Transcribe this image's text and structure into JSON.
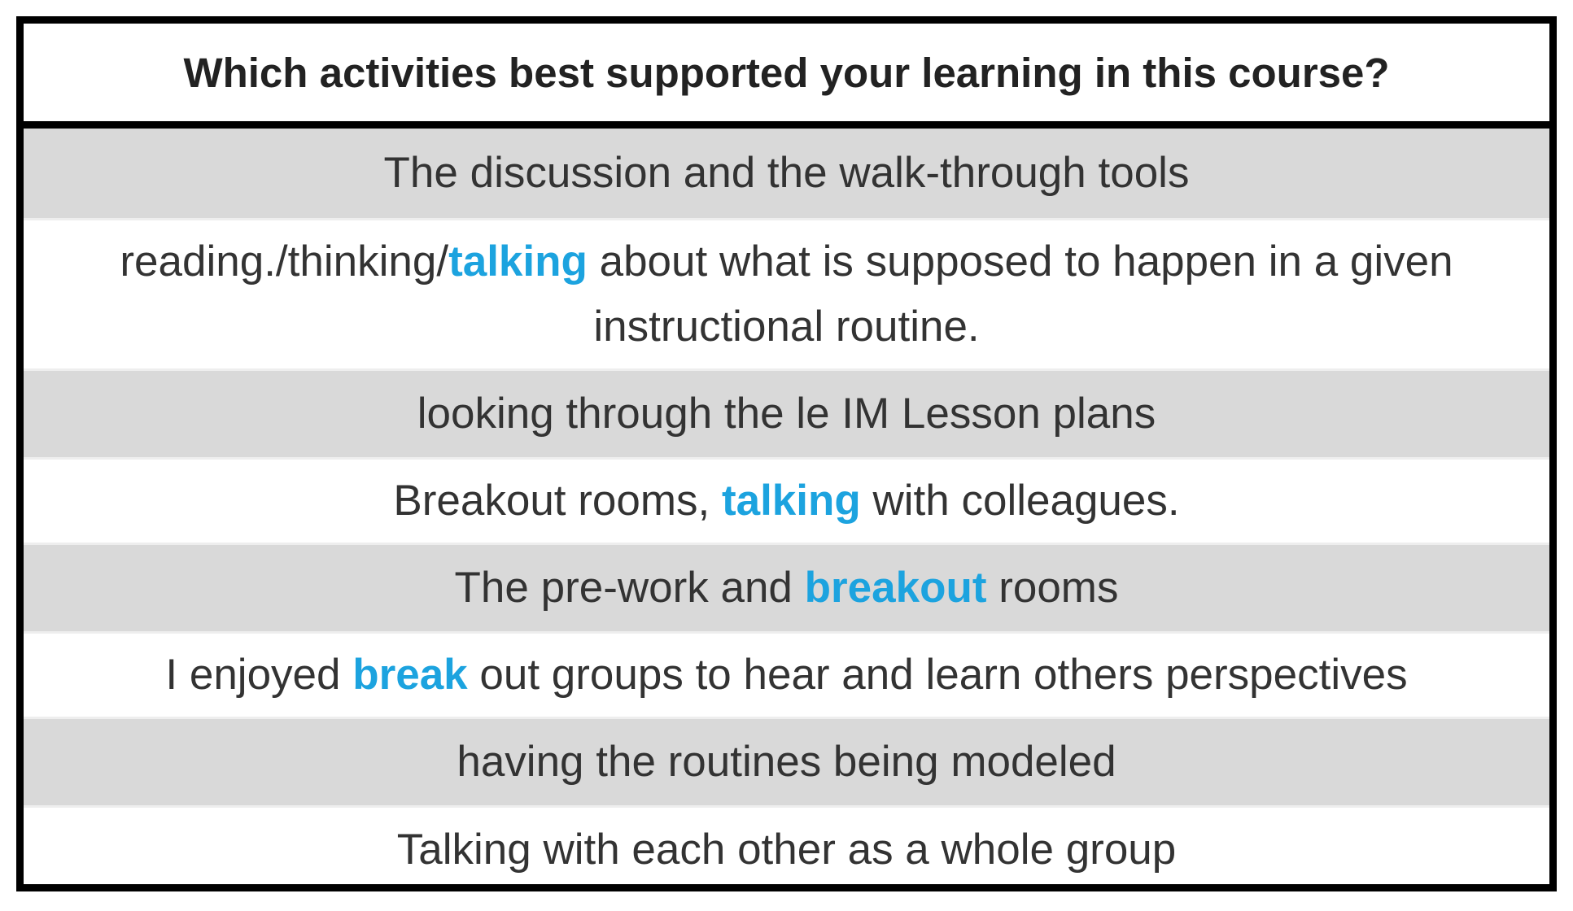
{
  "title": "Which activities best supported your learning in this course?",
  "colors": {
    "highlight": "#1ca3df",
    "shaded_row": "#d9d9d9",
    "border": "#000000",
    "text": "#333333"
  },
  "responses": [
    {
      "segments": [
        {
          "text": "The discussion and the walk-through tools",
          "highlight": false
        }
      ]
    },
    {
      "segments": [
        {
          "text": "reading./thinking/",
          "highlight": false
        },
        {
          "text": "talking",
          "highlight": true
        },
        {
          "text": " about what is supposed to happen in a given instructional routine.",
          "highlight": false
        }
      ]
    },
    {
      "segments": [
        {
          "text": "looking through the le IM Lesson plans",
          "highlight": false
        }
      ]
    },
    {
      "segments": [
        {
          "text": "Breakout rooms, ",
          "highlight": false
        },
        {
          "text": "talking",
          "highlight": true
        },
        {
          "text": " with colleagues.",
          "highlight": false
        }
      ]
    },
    {
      "segments": [
        {
          "text": "The pre-work and ",
          "highlight": false
        },
        {
          "text": "breakout",
          "highlight": true
        },
        {
          "text": " rooms",
          "highlight": false
        }
      ]
    },
    {
      "segments": [
        {
          "text": "I enjoyed ",
          "highlight": false
        },
        {
          "text": "break",
          "highlight": true
        },
        {
          "text": " out groups to hear and learn others perspectives",
          "highlight": false
        }
      ]
    },
    {
      "segments": [
        {
          "text": "having the routines being modeled",
          "highlight": false
        }
      ]
    },
    {
      "segments": [
        {
          "text": "Talking with each other as a whole group",
          "highlight": false
        }
      ]
    }
  ]
}
